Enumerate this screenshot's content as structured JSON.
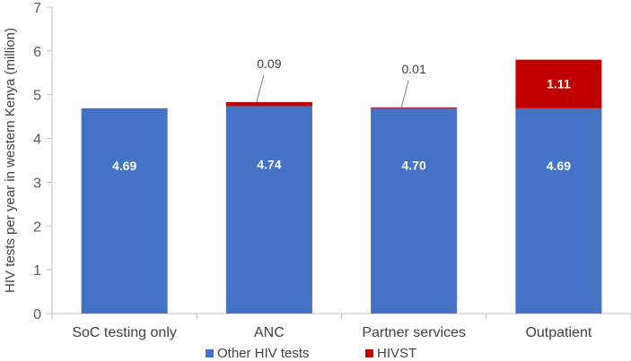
{
  "chart_data": {
    "type": "bar",
    "stacked": true,
    "categories": [
      "SoC testing only",
      "ANC",
      "Partner services",
      "Outpatient"
    ],
    "series": [
      {
        "name": "Other HIV tests",
        "values": [
          4.69,
          4.74,
          4.7,
          4.69
        ],
        "labels": [
          "4.69",
          "4.74",
          "4.70",
          "4.69"
        ],
        "color": "#4472C4"
      },
      {
        "name": "HIVST",
        "values": [
          0,
          0.09,
          0.01,
          1.11
        ],
        "labels": [
          "",
          "0.09",
          "0.01",
          "1.11"
        ],
        "color": "#C00000"
      }
    ],
    "title": "",
    "xlabel": "",
    "ylabel": "HIV tests per year in western Kenya (million)",
    "ylim": [
      0,
      7
    ],
    "yticks": [
      "0",
      "1",
      "2",
      "3",
      "4",
      "5",
      "6",
      "7"
    ],
    "grid": false,
    "legend_position": "bottom"
  }
}
